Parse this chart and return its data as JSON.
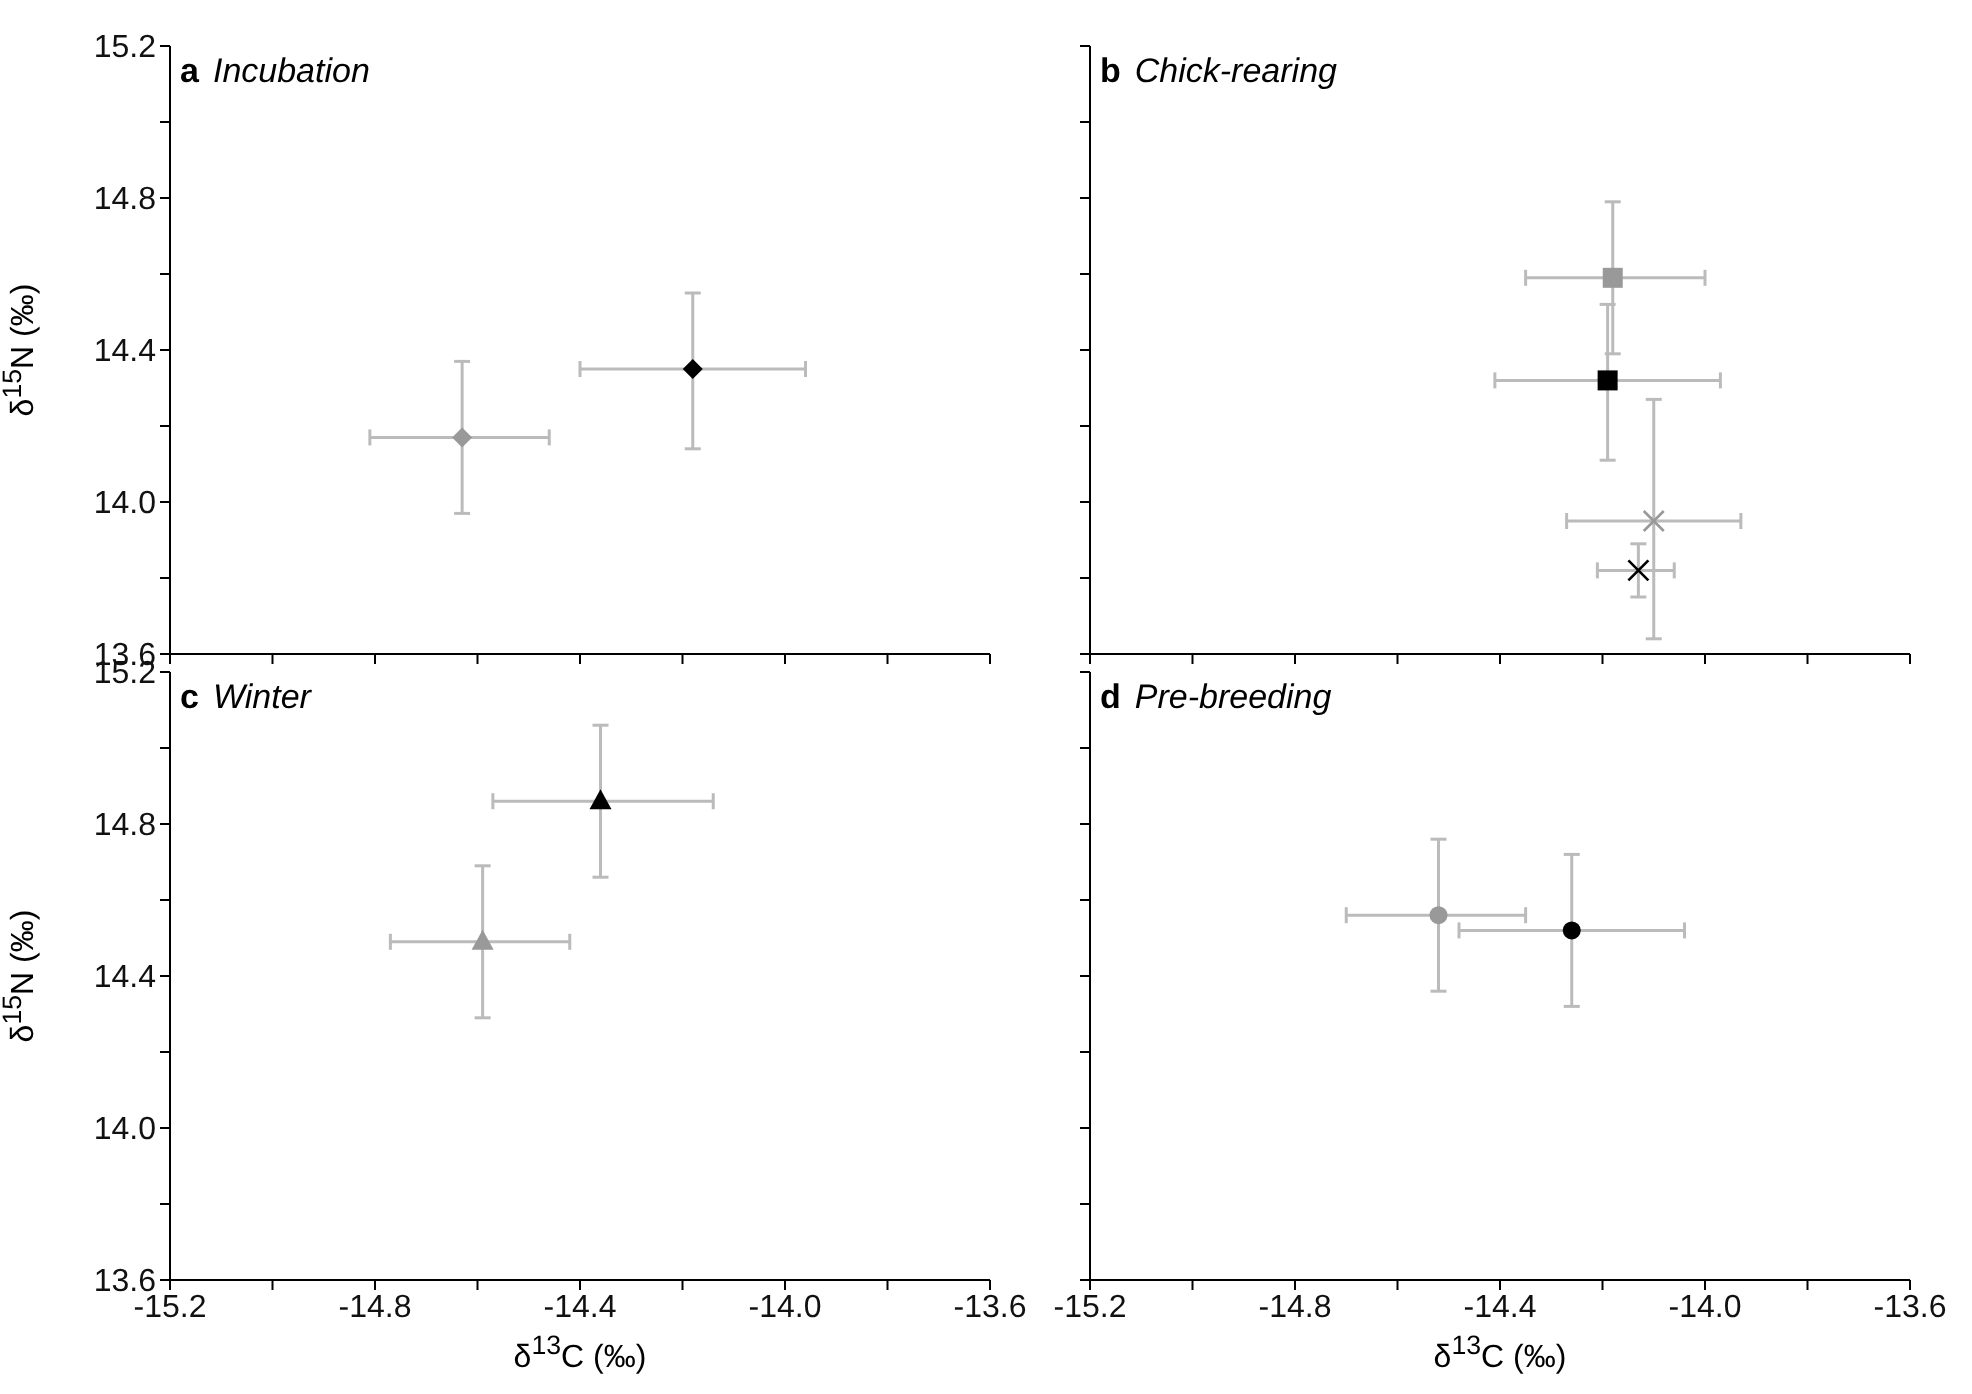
{
  "chart_data": [
    {
      "type": "scatter",
      "title": "a Incubation",
      "ylabel": "δ$^{15}$N  (‰)",
      "tick_labels": "y",
      "xlim": [
        -15.2,
        -13.6
      ],
      "ylim": [
        13.6,
        15.2
      ],
      "xticks": [
        -15.2,
        {
          "value": -15,
          "label": null
        },
        -14.8,
        {
          "value": -14.6,
          "label": null
        },
        -14.4,
        {
          "value": -14.2,
          "label": null
        },
        -14,
        {
          "value": -13.8,
          "label": null
        },
        -13.6
      ],
      "yticks": [
        13.6,
        {
          "value": 13.8,
          "label": null
        },
        {
          "value": 14,
          "label": "14.0"
        },
        {
          "value": 14.2,
          "label": null
        },
        14.4,
        {
          "value": 14.6,
          "label": null
        },
        14.8,
        {
          "value": 15,
          "label": null
        },
        15.2
      ],
      "series": [
        {
          "color": "#999999",
          "marker": "diamond",
          "x": [
            -14.63
          ],
          "values": [
            14.17
          ],
          "errors": [
            [
              13.97,
              14.37
            ]
          ],
          "xerrors": [
            [
              -14.81,
              -14.46
            ]
          ]
        },
        {
          "color": "#000000",
          "marker": "diamond",
          "x": [
            -14.18
          ],
          "values": [
            14.35
          ],
          "errors": [
            [
              14.14,
              14.55
            ]
          ],
          "xerrors": [
            [
              -14.4,
              -13.96
            ]
          ]
        }
      ]
    },
    {
      "type": "scatter",
      "title": "b Chick-rearing",
      "tick_labels": false,
      "xlim": [
        -15.2,
        -13.6
      ],
      "ylim": [
        13.6,
        15.2
      ],
      "xticks": [
        -15.2,
        {
          "value": -15,
          "label": null
        },
        -14.8,
        {
          "value": -14.6,
          "label": null
        },
        -14.4,
        {
          "value": -14.2,
          "label": null
        },
        -14,
        {
          "value": -13.8,
          "label": null
        },
        -13.6
      ],
      "yticks": [
        13.6,
        {
          "value": 13.8,
          "label": null
        },
        14,
        {
          "value": 14.2,
          "label": null
        },
        14.4,
        {
          "value": 14.6,
          "label": null
        },
        14.8,
        {
          "value": 15,
          "label": null
        },
        15.2
      ],
      "series": [
        {
          "color": "#999999",
          "marker": "square",
          "x": [
            -14.18
          ],
          "values": [
            14.59
          ],
          "errors": [
            [
              14.39,
              14.79
            ]
          ],
          "xerrors": [
            [
              -14.35,
              -14.0
            ]
          ]
        },
        {
          "color": "#000000",
          "marker": "square",
          "x": [
            -14.19
          ],
          "values": [
            14.32
          ],
          "errors": [
            [
              14.11,
              14.52
            ]
          ],
          "xerrors": [
            [
              -14.41,
              -13.97
            ]
          ]
        },
        {
          "color": "#999999",
          "marker": "cross",
          "x": [
            -14.1
          ],
          "values": [
            13.95
          ],
          "errors": [
            [
              13.64,
              14.27
            ]
          ],
          "xerrors": [
            [
              -14.27,
              -13.93
            ]
          ]
        },
        {
          "color": "#000000",
          "marker": "cross",
          "x": [
            -14.13
          ],
          "values": [
            13.82
          ],
          "errors": [
            [
              13.75,
              13.89
            ]
          ],
          "xerrors": [
            [
              -14.21,
              -14.06
            ]
          ]
        }
      ]
    },
    {
      "type": "scatter",
      "title": "c Winter",
      "xlabel": "δ$^{13}$C  (‰)",
      "ylabel": "δ$^{15}$N  (‰)",
      "xlim": [
        -15.2,
        -13.6
      ],
      "ylim": [
        13.6,
        15.2
      ],
      "xticks": [
        -15.2,
        {
          "value": -15,
          "label": null
        },
        -14.8,
        {
          "value": -14.6,
          "label": null
        },
        -14.4,
        {
          "value": -14.2,
          "label": null
        },
        {
          "value": -14,
          "label": "-14.0"
        },
        {
          "value": -13.8,
          "label": null
        },
        -13.6
      ],
      "yticks": [
        13.6,
        {
          "value": 13.8,
          "label": null
        },
        {
          "value": 14,
          "label": "14.0"
        },
        {
          "value": 14.2,
          "label": null
        },
        14.4,
        {
          "value": 14.6,
          "label": null
        },
        14.8,
        {
          "value": 15,
          "label": null
        },
        15.2
      ],
      "series": [
        {
          "color": "#999999",
          "marker": "triangle",
          "x": [
            -14.59
          ],
          "values": [
            14.49
          ],
          "errors": [
            [
              14.29,
              14.69
            ]
          ],
          "xerrors": [
            [
              -14.77,
              -14.42
            ]
          ]
        },
        {
          "color": "#000000",
          "marker": "triangle",
          "x": [
            -14.36
          ],
          "values": [
            14.86
          ],
          "errors": [
            [
              14.66,
              15.06
            ]
          ],
          "xerrors": [
            [
              -14.57,
              -14.14
            ]
          ]
        }
      ]
    },
    {
      "type": "scatter",
      "title": "d Pre-breeding",
      "xlabel": "δ$^{13}$C  (‰)",
      "tick_labels": "x",
      "xlim": [
        -15.2,
        -13.6
      ],
      "ylim": [
        13.6,
        15.2
      ],
      "xticks": [
        -15.2,
        {
          "value": -15,
          "label": null
        },
        -14.8,
        {
          "value": -14.6,
          "label": null
        },
        -14.4,
        {
          "value": -14.2,
          "label": null
        },
        {
          "value": -14,
          "label": "-14.0"
        },
        {
          "value": -13.8,
          "label": null
        },
        -13.6
      ],
      "yticks": [
        13.6,
        {
          "value": 13.8,
          "label": null
        },
        14,
        {
          "value": 14.2,
          "label": null
        },
        14.4,
        {
          "value": 14.6,
          "label": null
        },
        14.8,
        {
          "value": 15,
          "label": null
        },
        15.2
      ],
      "series": [
        {
          "color": "#999999",
          "marker": "circle",
          "x": [
            -14.52
          ],
          "values": [
            14.56
          ],
          "errors": [
            [
              14.36,
              14.76
            ]
          ],
          "xerrors": [
            [
              -14.7,
              -14.35
            ]
          ]
        },
        {
          "color": "#000000",
          "marker": "circle",
          "x": [
            -14.26
          ],
          "values": [
            14.52
          ],
          "errors": [
            [
              14.32,
              14.72
            ]
          ],
          "xerrors": [
            [
              -14.48,
              -14.04
            ]
          ]
        }
      ]
    }
  ]
}
